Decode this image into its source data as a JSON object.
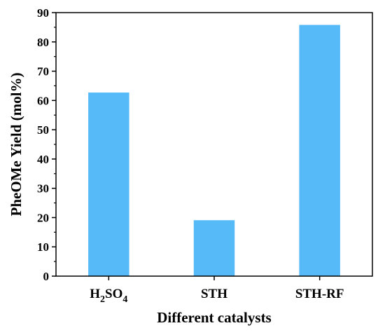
{
  "chart_data": {
    "type": "bar",
    "categories": [
      {
        "base": "H",
        "sub1": "2",
        "mid": "SO",
        "sub2": "4",
        "text": "H2SO4"
      },
      {
        "base": "STH",
        "text": "STH"
      },
      {
        "base": "STH-RF",
        "text": "STH-RF"
      }
    ],
    "values": [
      62.7,
      19.1,
      85.8
    ],
    "xlabel": "Different catalysts",
    "ylabel": "PheOMe Yield (mol%)",
    "ylim": [
      0,
      90
    ],
    "yticks": [
      0,
      10,
      20,
      30,
      40,
      50,
      60,
      70,
      80,
      90
    ],
    "bar_color": "#55baf7",
    "grid": false,
    "legend": "none"
  }
}
